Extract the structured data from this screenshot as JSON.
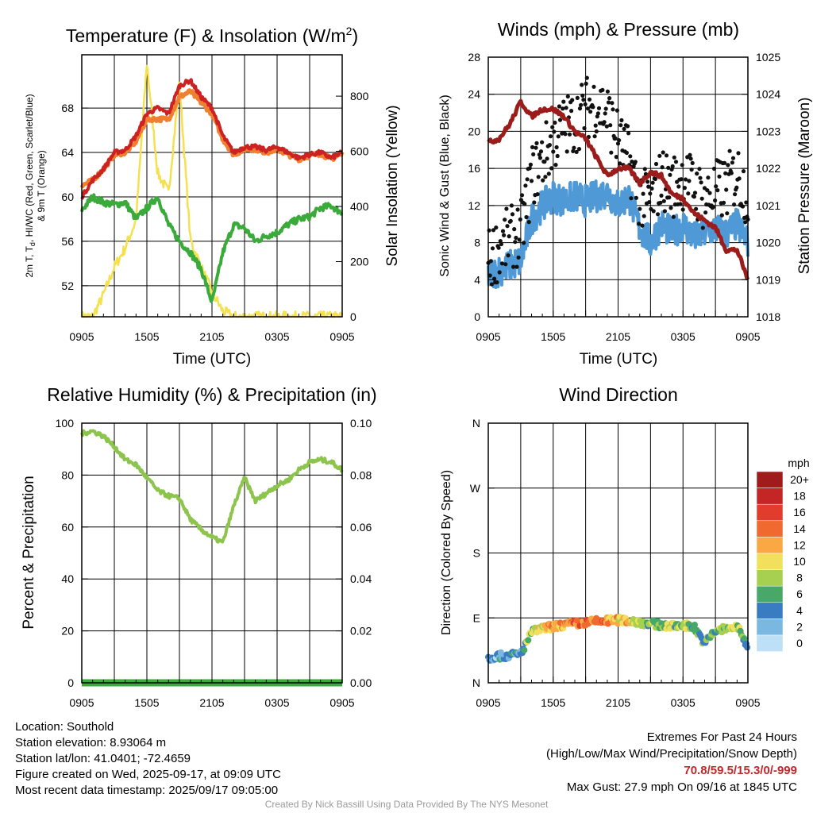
{
  "colors": {
    "temp": "#cc2222",
    "dewpoint": "#3aaa3a",
    "t9m": "#f08030",
    "solar": "#f5e050",
    "wind": "#4f9ad6",
    "gust": "#111111",
    "pressure": "#9c1c1c",
    "rh": "#8cc44c",
    "precip": "#3aaa3a"
  },
  "panels": {
    "temperature": {
      "title": "Temperature (F) & Insolation (W/m",
      "title_sup": "2",
      "title_end": ")",
      "ylabel_line1": "2m T, T",
      "ylabel_sub": "d",
      "ylabel_line1_end": ", HI/WC (Red, Green, Scarlet/Blue)",
      "ylabel_line2": "& 9m T (Orange)",
      "y2label": "Solar Insolation (Yellow)",
      "xlabel": "Time (UTC)"
    },
    "winds": {
      "title": "Winds (mph) & Pressure (mb)",
      "ylabel": "Sonic Wind & Gust (Blue, Black)",
      "y2label": "Station Pressure (Maroon)",
      "xlabel": "Time (UTC)"
    },
    "humidity": {
      "title": "Relative Humidity (%) & Precipitation (in)",
      "ylabel": "Percent & Precipitation"
    },
    "direction": {
      "title": "Wind Direction",
      "ylabel": "Direction (Colored By Speed)",
      "legend_title": "mph"
    }
  },
  "chart_data": [
    {
      "type": "line",
      "title": "Temperature (F) & Insolation (W/m2)",
      "xlabel": "Time (UTC)",
      "ylabel": "2m T, Td, HI/WC (Red, Green, Scarlet/Blue) & 9m T (Orange)",
      "y2label": "Solar Insolation (Yellow)",
      "x_ticks": [
        "0905",
        "1505",
        "2105",
        "0305",
        "0905"
      ],
      "x_hours": [
        0,
        1,
        2,
        3,
        4,
        5,
        6,
        7,
        8,
        9,
        10,
        11,
        12,
        13,
        14,
        15,
        16,
        17,
        18,
        19,
        20,
        21,
        22,
        23,
        24
      ],
      "ylim": [
        49.2,
        72.8
      ],
      "y_ticks": [
        52,
        56,
        60,
        64,
        68
      ],
      "y2lim": [
        0,
        950
      ],
      "y2_ticks": [
        0,
        200,
        400,
        600,
        800
      ],
      "grid": true,
      "series": [
        {
          "name": "2m T (Red)",
          "axis": "left",
          "values": [
            60.0,
            61.5,
            62.5,
            64.0,
            64.2,
            65.5,
            67.5,
            68.0,
            67.5,
            70.0,
            70.5,
            69.0,
            68.0,
            65.5,
            64.0,
            64.5,
            64.5,
            64.2,
            64.5,
            64.0,
            63.5,
            63.8,
            64.0,
            63.5,
            64.0
          ]
        },
        {
          "name": "9m T (Orange)",
          "axis": "left",
          "values": [
            61.0,
            61.5,
            62.5,
            63.8,
            64.0,
            65.0,
            67.0,
            67.0,
            67.0,
            69.0,
            69.5,
            68.5,
            67.5,
            65.2,
            63.8,
            64.3,
            64.3,
            64.0,
            64.3,
            63.8,
            63.4,
            63.7,
            63.9,
            63.4,
            63.9
          ]
        },
        {
          "name": "Td (Green)",
          "axis": "left",
          "values": [
            58.8,
            60.0,
            59.5,
            59.3,
            59.5,
            58.0,
            59.0,
            60.0,
            57.5,
            56.0,
            55.0,
            53.5,
            50.5,
            55.0,
            57.5,
            57.2,
            56.0,
            56.5,
            56.8,
            57.5,
            58.0,
            58.2,
            59.0,
            59.2,
            58.5
          ]
        },
        {
          "name": "Solar Insolation (Yellow)",
          "axis": "right",
          "values": [
            0,
            0,
            80,
            180,
            250,
            350,
            920,
            520,
            450,
            850,
            280,
            180,
            90,
            20,
            0,
            0,
            0,
            0,
            0,
            0,
            0,
            0,
            0,
            0,
            0
          ]
        }
      ]
    },
    {
      "type": "line",
      "title": "Winds (mph) & Pressure (mb)",
      "xlabel": "Time (UTC)",
      "ylabel": "Sonic Wind & Gust (Blue, Black)",
      "y2label": "Station Pressure (Maroon)",
      "x_ticks": [
        "0905",
        "1505",
        "2105",
        "0305",
        "0905"
      ],
      "ylim": [
        0,
        28
      ],
      "y_ticks": [
        0,
        4,
        8,
        12,
        16,
        20,
        24,
        28
      ],
      "y2lim": [
        1018,
        1025
      ],
      "y2_ticks": [
        1018,
        1019,
        1020,
        1021,
        1022,
        1023,
        1024,
        1025
      ],
      "grid": true,
      "series": [
        {
          "name": "Sonic Wind (Blue)",
          "axis": "left",
          "values": [
            4.5,
            5.0,
            5.5,
            6.0,
            10.5,
            12.0,
            13.0,
            12.5,
            13.0,
            12.5,
            13.0,
            13.5,
            12.0,
            13.0,
            9.5,
            8.0,
            10.0,
            9.0,
            10.0,
            8.5,
            9.0,
            9.5,
            9.0,
            10.0,
            8.0
          ]
        },
        {
          "name": "Gust (Black)",
          "axis": "left",
          "values": [
            6.0,
            7.5,
            8.5,
            9.0,
            15.0,
            17.0,
            19.0,
            20.5,
            21.0,
            22.5,
            23.0,
            22.0,
            19.0,
            17.0,
            13.0,
            12.0,
            15.0,
            14.0,
            15.0,
            14.0,
            12.5,
            13.5,
            14.0,
            15.5,
            13.0
          ]
        },
        {
          "name": "Station Pressure (Maroon)",
          "axis": "right",
          "values": [
            1022.7,
            1022.8,
            1023.2,
            1023.8,
            1023.4,
            1023.6,
            1023.6,
            1023.4,
            1023.0,
            1022.8,
            1022.3,
            1021.8,
            1022.0,
            1022.0,
            1021.6,
            1021.9,
            1021.8,
            1021.3,
            1021.2,
            1020.8,
            1020.6,
            1020.4,
            1019.8,
            1019.8,
            1019.0
          ]
        }
      ]
    },
    {
      "type": "line",
      "title": "Relative Humidity (%) & Precipitation (in)",
      "ylabel": "Percent & Precipitation",
      "x_ticks": [
        "0905",
        "1505",
        "2105",
        "0305",
        "0905"
      ],
      "ylim": [
        0,
        100
      ],
      "y_ticks": [
        0,
        20,
        40,
        60,
        80,
        100
      ],
      "y2lim": [
        0,
        0.1
      ],
      "y2_ticks": [
        "0.00",
        "0.02",
        "0.04",
        "0.06",
        "0.08",
        "0.10"
      ],
      "grid": true,
      "series": [
        {
          "name": "Relative Humidity",
          "axis": "left",
          "values": [
            96,
            97,
            95,
            91,
            86,
            84,
            79,
            74,
            72,
            71,
            63,
            59,
            56,
            54,
            68,
            79,
            70,
            73,
            76,
            78,
            82,
            85,
            86,
            85,
            82
          ]
        },
        {
          "name": "Precipitation",
          "axis": "right",
          "values": [
            0,
            0,
            0,
            0,
            0,
            0,
            0,
            0,
            0,
            0,
            0,
            0,
            0,
            0,
            0,
            0,
            0,
            0,
            0,
            0,
            0,
            0,
            0,
            0,
            0
          ]
        }
      ]
    },
    {
      "type": "scatter",
      "title": "Wind Direction",
      "ylabel": "Direction (Colored By Speed)",
      "x_ticks": [
        "0905",
        "1505",
        "2105",
        "0305",
        "0905"
      ],
      "y_ticks": [
        "N",
        "E",
        "S",
        "W",
        "N"
      ],
      "ylim_degrees": [
        0,
        360
      ],
      "legend_title": "mph",
      "legend_labels": [
        "20+",
        "18",
        "16",
        "14",
        "12",
        "10",
        "8",
        "6",
        "4",
        "2",
        "0"
      ],
      "legend_colors": [
        "#a01c1c",
        "#c42626",
        "#e23c2c",
        "#f06a30",
        "#f9a844",
        "#f2df5c",
        "#a8d050",
        "#48a868",
        "#3a7cc2",
        "#7ab8e2",
        "#bde0f6"
      ],
      "series": [
        {
          "name": "Direction",
          "hours": [
            0,
            1,
            2,
            3,
            4,
            5,
            6,
            7,
            8,
            9,
            10,
            11,
            12,
            13,
            14,
            15,
            16,
            17,
            18,
            19,
            20,
            21,
            22,
            23,
            24
          ],
          "degrees": [
            35,
            37,
            38,
            40,
            70,
            75,
            78,
            80,
            82,
            83,
            85,
            86,
            87,
            86,
            84,
            82,
            80,
            78,
            80,
            78,
            55,
            72,
            75,
            78,
            50
          ],
          "speed": [
            4,
            4,
            5,
            5,
            10,
            11,
            13,
            14,
            15,
            16,
            15,
            14,
            12,
            12,
            9,
            8,
            9,
            8,
            9,
            8,
            6,
            8,
            9,
            10,
            6
          ]
        }
      ]
    }
  ],
  "footer": {
    "location": "Location: Southold",
    "elevation": "Station elevation: 8.93064 m",
    "latlon": "Station lat/lon: 41.0401; -72.4659",
    "created": "Figure created on Wed, 2025-09-17, at 09:09 UTC",
    "recent": "Most recent data timestamp: 2025/09/17 09:05:00",
    "extremes_title": "Extremes For Past 24 Hours",
    "extremes_subtitle": "(High/Low/Max Wind/Precipitation/Snow Depth)",
    "extremes_values": "70.8/59.5/15.3/0/-999",
    "max_gust": "Max Gust: 27.9 mph On 09/16 at 1845 UTC",
    "credit": "Created By Nick Bassill Using Data Provided By The NYS Mesonet"
  }
}
